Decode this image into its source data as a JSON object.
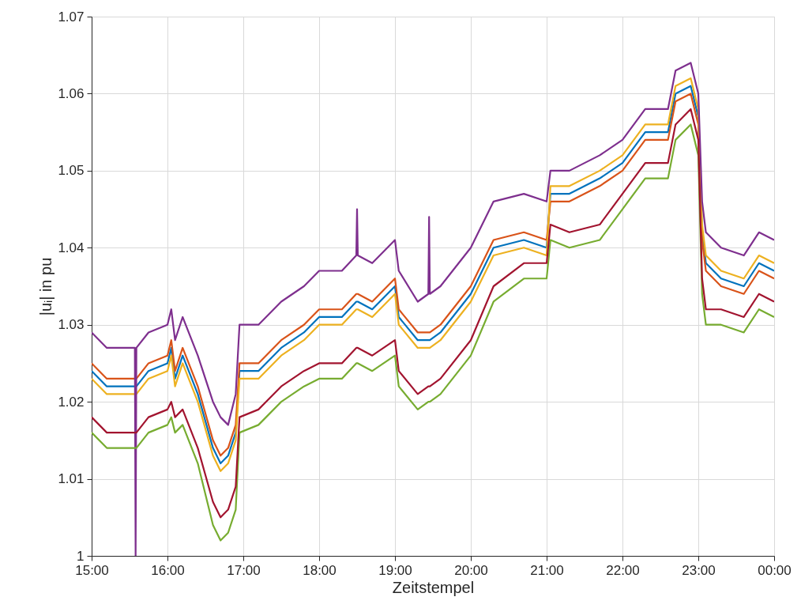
{
  "chart_data": {
    "type": "line",
    "xlabel": "Zeitstempel",
    "ylabel": "|uᵢ| in pu",
    "x": [
      15.0,
      15.2,
      15.4,
      15.57,
      15.58,
      15.59,
      15.75,
      16.0,
      16.05,
      16.1,
      16.2,
      16.4,
      16.6,
      16.7,
      16.8,
      16.9,
      16.95,
      17.2,
      17.5,
      17.8,
      18.0,
      18.3,
      18.49,
      18.5,
      18.51,
      18.7,
      19.0,
      19.05,
      19.3,
      19.44,
      19.45,
      19.46,
      19.6,
      20.0,
      20.3,
      20.7,
      21.0,
      21.05,
      21.3,
      21.7,
      22.0,
      22.3,
      22.6,
      22.7,
      22.9,
      23.0,
      23.05,
      23.1,
      23.3,
      23.6,
      23.8,
      24.0
    ],
    "series": [
      {
        "color": "#0072bd",
        "values": [
          1.024,
          1.022,
          1.022,
          1.022,
          1.022,
          1.022,
          1.024,
          1.025,
          1.027,
          1.023,
          1.026,
          1.021,
          1.014,
          1.012,
          1.013,
          1.016,
          1.024,
          1.024,
          1.027,
          1.029,
          1.031,
          1.031,
          1.033,
          1.033,
          1.033,
          1.032,
          1.035,
          1.031,
          1.028,
          1.028,
          1.028,
          1.028,
          1.029,
          1.034,
          1.04,
          1.041,
          1.04,
          1.047,
          1.047,
          1.049,
          1.051,
          1.055,
          1.055,
          1.06,
          1.061,
          1.057,
          1.042,
          1.038,
          1.036,
          1.035,
          1.038,
          1.037
        ]
      },
      {
        "color": "#d95319",
        "values": [
          1.025,
          1.023,
          1.023,
          1.023,
          1.023,
          1.023,
          1.025,
          1.026,
          1.028,
          1.024,
          1.027,
          1.022,
          1.015,
          1.013,
          1.014,
          1.017,
          1.025,
          1.025,
          1.028,
          1.03,
          1.032,
          1.032,
          1.034,
          1.034,
          1.034,
          1.033,
          1.036,
          1.032,
          1.029,
          1.029,
          1.029,
          1.029,
          1.03,
          1.035,
          1.041,
          1.042,
          1.041,
          1.046,
          1.046,
          1.048,
          1.05,
          1.054,
          1.054,
          1.059,
          1.06,
          1.056,
          1.041,
          1.037,
          1.035,
          1.034,
          1.037,
          1.036
        ]
      },
      {
        "color": "#edb120",
        "values": [
          1.023,
          1.021,
          1.021,
          1.021,
          1.021,
          1.021,
          1.023,
          1.024,
          1.026,
          1.022,
          1.025,
          1.02,
          1.013,
          1.011,
          1.012,
          1.015,
          1.023,
          1.023,
          1.026,
          1.028,
          1.03,
          1.03,
          1.032,
          1.032,
          1.032,
          1.031,
          1.034,
          1.03,
          1.027,
          1.027,
          1.027,
          1.027,
          1.028,
          1.033,
          1.039,
          1.04,
          1.039,
          1.048,
          1.048,
          1.05,
          1.052,
          1.056,
          1.056,
          1.061,
          1.062,
          1.058,
          1.043,
          1.039,
          1.037,
          1.036,
          1.039,
          1.038
        ]
      },
      {
        "color": "#7e2f8e",
        "values": [
          1.029,
          1.027,
          1.027,
          1.027,
          1.0,
          1.027,
          1.029,
          1.03,
          1.032,
          1.028,
          1.031,
          1.026,
          1.02,
          1.018,
          1.017,
          1.021,
          1.03,
          1.03,
          1.033,
          1.035,
          1.037,
          1.037,
          1.039,
          1.045,
          1.039,
          1.038,
          1.041,
          1.037,
          1.033,
          1.034,
          1.044,
          1.034,
          1.035,
          1.04,
          1.046,
          1.047,
          1.046,
          1.05,
          1.05,
          1.052,
          1.054,
          1.058,
          1.058,
          1.063,
          1.064,
          1.06,
          1.046,
          1.042,
          1.04,
          1.039,
          1.042,
          1.041
        ]
      },
      {
        "color": "#77ac30",
        "values": [
          1.016,
          1.014,
          1.014,
          1.014,
          1.014,
          1.014,
          1.016,
          1.017,
          1.018,
          1.016,
          1.017,
          1.012,
          1.004,
          1.002,
          1.003,
          1.006,
          1.016,
          1.017,
          1.02,
          1.022,
          1.023,
          1.023,
          1.025,
          1.025,
          1.025,
          1.024,
          1.026,
          1.022,
          1.019,
          1.02,
          1.02,
          1.02,
          1.021,
          1.026,
          1.033,
          1.036,
          1.036,
          1.041,
          1.04,
          1.041,
          1.045,
          1.049,
          1.049,
          1.054,
          1.056,
          1.052,
          1.034,
          1.03,
          1.03,
          1.029,
          1.032,
          1.031
        ]
      },
      {
        "color": "#a2142f",
        "values": [
          1.018,
          1.016,
          1.016,
          1.016,
          1.016,
          1.016,
          1.018,
          1.019,
          1.02,
          1.018,
          1.019,
          1.014,
          1.007,
          1.005,
          1.006,
          1.009,
          1.018,
          1.019,
          1.022,
          1.024,
          1.025,
          1.025,
          1.027,
          1.027,
          1.027,
          1.026,
          1.028,
          1.024,
          1.021,
          1.022,
          1.022,
          1.022,
          1.023,
          1.028,
          1.035,
          1.038,
          1.038,
          1.043,
          1.042,
          1.043,
          1.047,
          1.051,
          1.051,
          1.056,
          1.058,
          1.054,
          1.036,
          1.032,
          1.032,
          1.031,
          1.034,
          1.033
        ]
      }
    ],
    "xlim": [
      15,
      24
    ],
    "xticks": [
      {
        "value": 15,
        "label": "15:00"
      },
      {
        "value": 16,
        "label": "16:00"
      },
      {
        "value": 17,
        "label": "17:00"
      },
      {
        "value": 18,
        "label": "18:00"
      },
      {
        "value": 19,
        "label": "19:00"
      },
      {
        "value": 20,
        "label": "20:00"
      },
      {
        "value": 21,
        "label": "21:00"
      },
      {
        "value": 22,
        "label": "22:00"
      },
      {
        "value": 23,
        "label": "23:00"
      },
      {
        "value": 24,
        "label": "00:00"
      }
    ],
    "ylim": [
      1,
      1.07
    ],
    "yticks": [
      1,
      1.01,
      1.02,
      1.03,
      1.04,
      1.05,
      1.06,
      1.07
    ],
    "grid": true,
    "marker": "none",
    "line_style": "solid"
  }
}
